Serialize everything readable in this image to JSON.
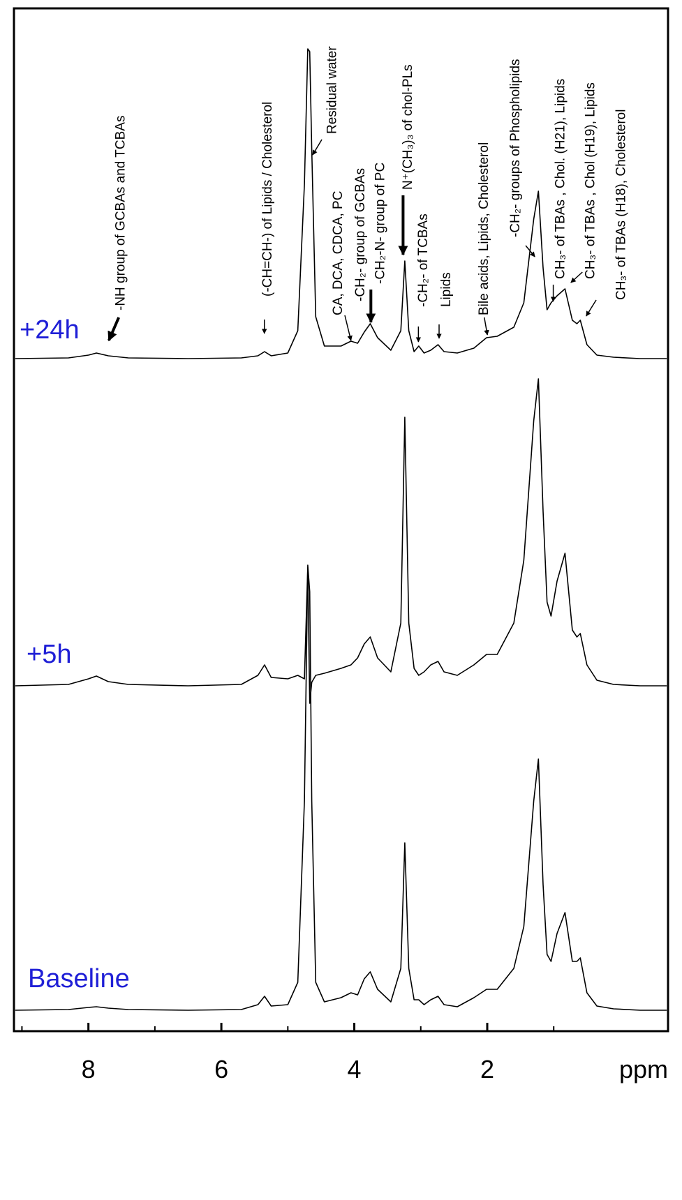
{
  "chart_data": {
    "type": "line",
    "x_label": "ppm",
    "xlim": [
      9.12,
      -0.72
    ],
    "xticks": [
      8,
      6,
      4,
      2
    ],
    "xminorticks": [
      9,
      7,
      5,
      3,
      1
    ],
    "label_color": "#1f1fd6",
    "x": [
      9.1,
      8.3,
      8.0,
      7.88,
      7.7,
      7.4,
      6.5,
      5.7,
      5.45,
      5.35,
      5.25,
      5.0,
      4.85,
      4.75,
      4.7,
      4.67,
      4.64,
      4.58,
      4.45,
      4.2,
      4.05,
      3.95,
      3.85,
      3.76,
      3.65,
      3.45,
      3.3,
      3.24,
      3.18,
      3.1,
      3.03,
      2.95,
      2.85,
      2.74,
      2.65,
      2.45,
      2.2,
      2.01,
      1.85,
      1.6,
      1.45,
      1.3,
      1.23,
      1.16,
      1.1,
      1.04,
      0.95,
      0.83,
      0.72,
      0.65,
      0.6,
      0.5,
      0.35,
      0.1,
      -0.3,
      -0.7
    ],
    "series": [
      {
        "name": "+24h",
        "color": "#000000",
        "values": [
          0,
          1,
          5,
          8,
          4,
          1,
          0,
          1,
          4,
          10,
          4,
          8,
          40,
          250,
          444,
          440,
          300,
          60,
          18,
          18,
          25,
          22,
          38,
          50,
          30,
          12,
          40,
          140,
          40,
          10,
          18,
          8,
          12,
          20,
          10,
          8,
          15,
          30,
          32,
          45,
          80,
          200,
          240,
          130,
          70,
          80,
          90,
          100,
          55,
          50,
          55,
          20,
          5,
          2,
          0,
          0
        ]
      },
      {
        "name": "+5h",
        "color": "#000000",
        "values": [
          0,
          2,
          10,
          14,
          6,
          2,
          0,
          2,
          15,
          30,
          12,
          10,
          15,
          10,
          170,
          -25,
          5,
          15,
          18,
          25,
          30,
          40,
          60,
          70,
          40,
          20,
          90,
          385,
          90,
          25,
          15,
          20,
          30,
          35,
          20,
          15,
          30,
          45,
          45,
          90,
          180,
          380,
          440,
          250,
          120,
          100,
          150,
          190,
          80,
          70,
          75,
          30,
          8,
          2,
          0,
          0
        ]
      },
      {
        "name": "Baseline",
        "color": "#000000",
        "values": [
          0,
          1,
          4,
          5,
          3,
          1,
          0,
          1,
          8,
          20,
          6,
          8,
          40,
          300,
          638,
          600,
          300,
          40,
          12,
          18,
          25,
          22,
          45,
          55,
          30,
          12,
          60,
          240,
          60,
          15,
          15,
          8,
          15,
          20,
          8,
          5,
          18,
          30,
          30,
          60,
          120,
          300,
          360,
          180,
          80,
          70,
          110,
          140,
          70,
          70,
          75,
          25,
          6,
          2,
          0,
          0
        ]
      }
    ],
    "annotations": [
      "-NH group of GCBAs and TCBAs",
      "(-CH=CH-) of Lipids / Cholesterol",
      "Residual water",
      "CA, DCA, CDCA, PC",
      "-CH₂-  group of GCBAs",
      "-CH₂-N- group of PC",
      "N⁺(CH₃)₃ of chol-PLs",
      "-CH₂-  of TCBAs",
      "Lipids",
      "Bile acids, Lipids, Cholesterol",
      "-CH₂- groups of Phospholipids",
      "CH₃- of TBAs , Chol. (H21), Lipids",
      "CH₃- of TBAs , Chol (H19), Lipids",
      "CH₃- of TBAs (H18),  Cholesterol"
    ]
  }
}
